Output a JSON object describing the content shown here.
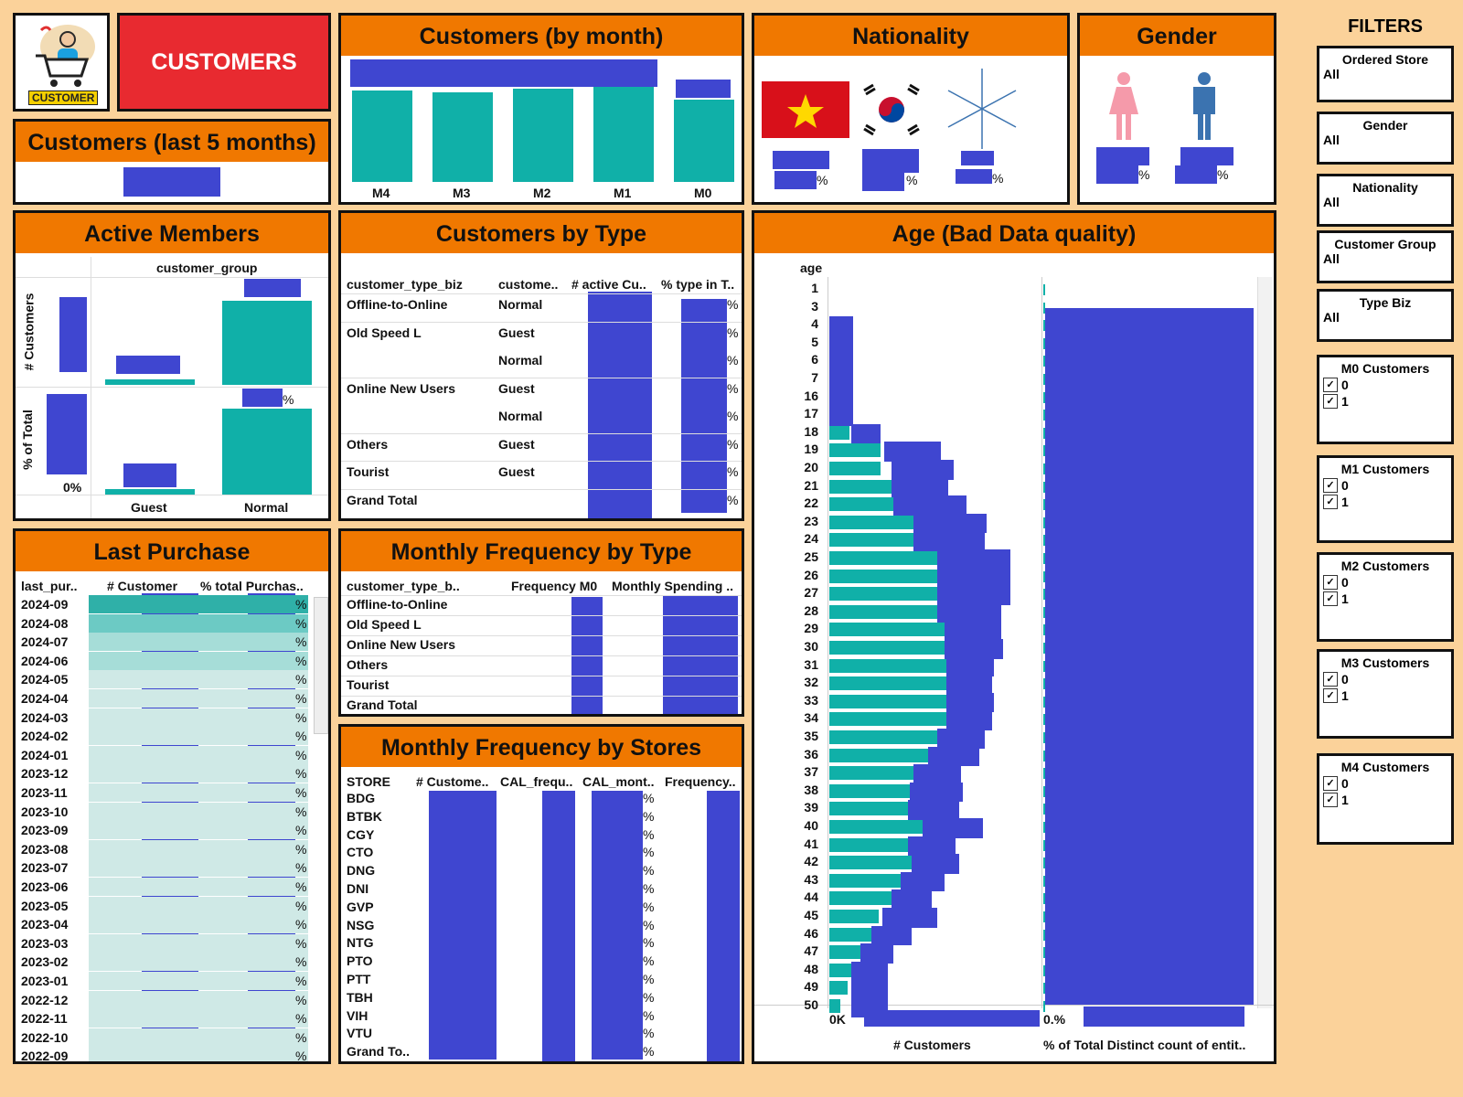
{
  "header": {
    "logo_text": "CUSTOMER",
    "title": "CUSTOMERS"
  },
  "last5": {
    "title": "Customers (last 5 months)"
  },
  "by_month": {
    "title": "Customers (by month)",
    "categories": [
      "M4",
      "M3",
      "M2",
      "M1",
      "M0"
    ]
  },
  "nationality": {
    "title": "Nationality",
    "pct": [
      "%",
      "%",
      "%"
    ]
  },
  "gender": {
    "title": "Gender",
    "pct": [
      "%",
      "%"
    ]
  },
  "active": {
    "title": "Active Members",
    "group_label": "customer_group",
    "y1": "# Customers",
    "y2": "% of Total",
    "zero": "0%",
    "pct": "%",
    "categories": [
      "Guest",
      "Normal"
    ]
  },
  "by_type": {
    "title": "Customers by Type",
    "headers": [
      "customer_type_biz",
      "custome..",
      "# active Cu..",
      "% type in T.."
    ],
    "rows": [
      [
        "Offline-to-Online",
        "Normal"
      ],
      [
        "Old Speed L",
        "Guest"
      ],
      [
        "",
        "Normal"
      ],
      [
        "Online New Users",
        "Guest"
      ],
      [
        "",
        "Normal"
      ],
      [
        "Others",
        "Guest"
      ],
      [
        "Tourist",
        "Guest"
      ],
      [
        "Grand Total",
        ""
      ]
    ],
    "pct": "%"
  },
  "age": {
    "title": "Age (Bad Data quality)",
    "header": "age",
    "ages": [
      "1",
      "3",
      "4",
      "5",
      "6",
      "7",
      "16",
      "17",
      "18",
      "19",
      "20",
      "21",
      "22",
      "23",
      "24",
      "25",
      "26",
      "27",
      "28",
      "29",
      "30",
      "31",
      "32",
      "33",
      "34",
      "35",
      "36",
      "37",
      "38",
      "39",
      "40",
      "41",
      "42",
      "43",
      "44",
      "45",
      "46",
      "47",
      "48",
      "49",
      "50"
    ],
    "x1_tick": "0K",
    "x2_tick": "0.%",
    "x1_label": "# Customers",
    "x2_label": "% of Total Distinct count of entit.."
  },
  "last_purchase": {
    "title": "Last Purchase",
    "headers": [
      "last_pur..",
      "# Customer",
      "% total Purchas.."
    ],
    "rows": [
      "2024-09",
      "2024-08",
      "2024-07",
      "2024-06",
      "2024-05",
      "2024-04",
      "2024-03",
      "2024-02",
      "2024-01",
      "2023-12",
      "2023-11",
      "2023-10",
      "2023-09",
      "2023-08",
      "2023-07",
      "2023-06",
      "2023-05",
      "2023-04",
      "2023-03",
      "2023-02",
      "2023-01",
      "2022-12",
      "2022-11",
      "2022-10",
      "2022-09"
    ],
    "pct": "%"
  },
  "freq_type": {
    "title": "Monthly Frequency by Type",
    "headers": [
      "customer_type_b..",
      "Frequency M0",
      "Monthly Spending .."
    ],
    "rows": [
      "Offline-to-Online",
      "Old Speed L",
      "Online New Users",
      "Others",
      "Tourist",
      "Grand Total"
    ]
  },
  "freq_store": {
    "title": "Monthly Frequency by Stores",
    "headers": [
      "STORE",
      "# Custome..",
      "CAL_frequ..",
      "CAL_mont..",
      "Frequency.."
    ],
    "rows": [
      "BDG",
      "BTBK",
      "CGY",
      "CTO",
      "DNG",
      "DNI",
      "GVP",
      "NSG",
      "NTG",
      "PTO",
      "PTT",
      "TBH",
      "VIH",
      "VTU",
      "Grand To.."
    ],
    "pct": "%"
  },
  "filters": {
    "title": "FILTERS",
    "dropdowns": [
      {
        "label": "Ordered Store",
        "value": "All"
      },
      {
        "label": "Gender",
        "value": "All"
      },
      {
        "label": "Nationality",
        "value": "All"
      },
      {
        "label": "Customer Group",
        "value": "All"
      },
      {
        "label": "Type Biz",
        "value": "All"
      }
    ],
    "checks": [
      {
        "label": "M0 Customers",
        "opts": [
          "0",
          "1"
        ]
      },
      {
        "label": "M1 Customers",
        "opts": [
          "0",
          "1"
        ]
      },
      {
        "label": "M2 Customers",
        "opts": [
          "0",
          "1"
        ]
      },
      {
        "label": "M3 Customers",
        "opts": [
          "0",
          "1"
        ]
      },
      {
        "label": "M4 Customers",
        "opts": [
          "0",
          "1"
        ]
      }
    ],
    "check_mark": "✓"
  },
  "colors": {
    "accent": "#f07800",
    "teal": "#10b0a8",
    "redact": "#3f46d0",
    "header_red": "#e82a30"
  }
}
